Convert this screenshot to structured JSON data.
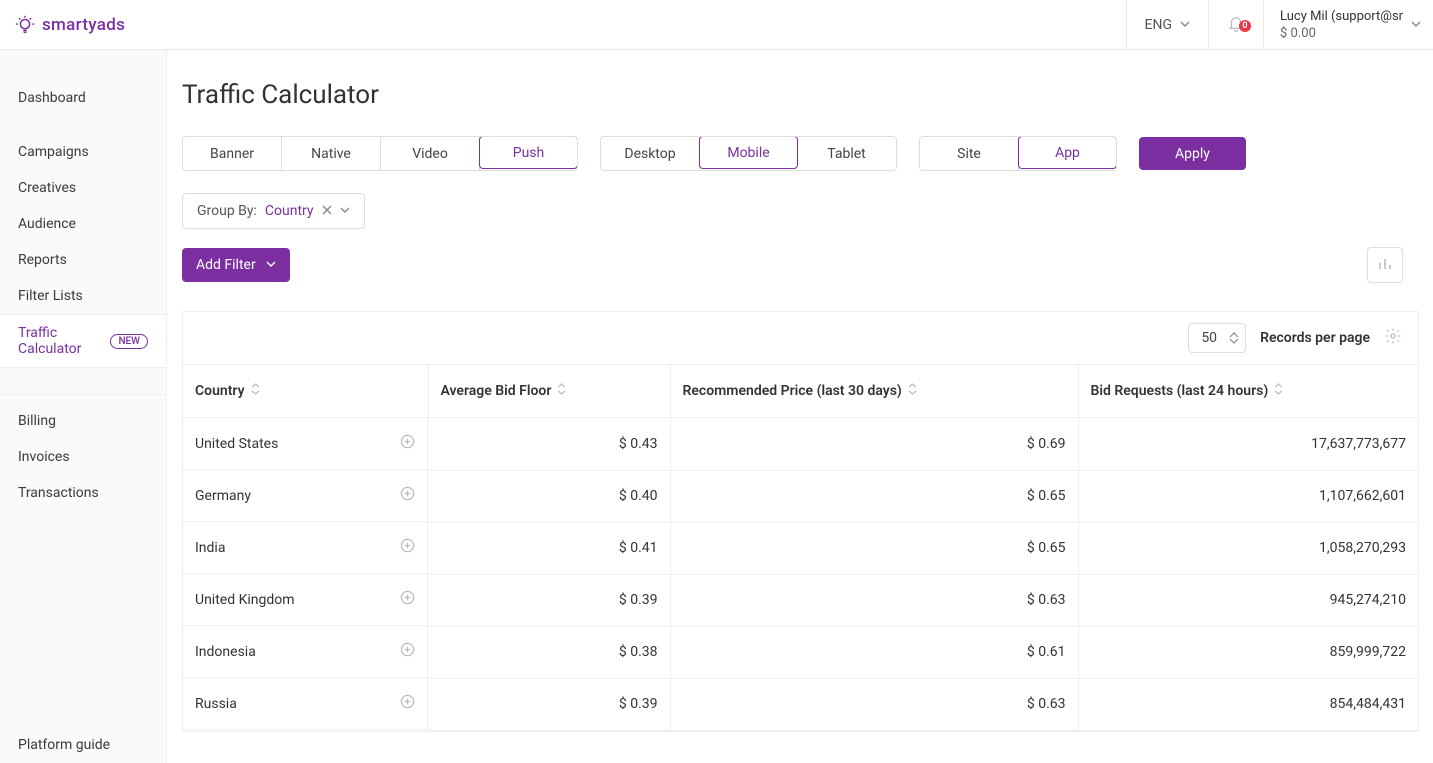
{
  "brand": "smartyads",
  "topbar": {
    "lang": "ENG",
    "notifications_count": "0",
    "user_name": "Lucy Mil (support@sma",
    "balance": "$ 0.00"
  },
  "sidebar": {
    "groups": [
      [
        "Dashboard"
      ],
      [
        "Campaigns",
        "Creatives",
        "Audience",
        "Reports",
        "Filter Lists",
        "Traffic Calculator"
      ],
      [
        "Billing",
        "Invoices",
        "Transactions"
      ]
    ],
    "active": "Traffic Calculator",
    "new_badge": "NEW",
    "footer": "Platform guide"
  },
  "page": {
    "title": "Traffic Calculator"
  },
  "filters": {
    "format": {
      "options": [
        "Banner",
        "Native",
        "Video",
        "Push"
      ],
      "active": "Push"
    },
    "device": {
      "options": [
        "Desktop",
        "Mobile",
        "Tablet"
      ],
      "active": "Mobile"
    },
    "inventory": {
      "options": [
        "Site",
        "App"
      ],
      "active": "App"
    },
    "apply_label": "Apply"
  },
  "groupby": {
    "label": "Group By:",
    "value": "Country"
  },
  "add_filter_label": "Add Filter",
  "table": {
    "records_per_page_value": "50",
    "records_per_page_label": "Records per page",
    "columns": [
      "Country",
      "Average Bid Floor",
      "Recommended Price (last 30 days)",
      "Bid Requests (last 24 hours)"
    ],
    "rows": [
      {
        "country": "United States",
        "bid_floor": "$ 0.43",
        "rec_price": "$ 0.69",
        "requests": "17,637,773,677"
      },
      {
        "country": "Germany",
        "bid_floor": "$ 0.40",
        "rec_price": "$ 0.65",
        "requests": "1,107,662,601"
      },
      {
        "country": "India",
        "bid_floor": "$ 0.41",
        "rec_price": "$ 0.65",
        "requests": "1,058,270,293"
      },
      {
        "country": "United Kingdom",
        "bid_floor": "$ 0.39",
        "rec_price": "$ 0.63",
        "requests": "945,274,210"
      },
      {
        "country": "Indonesia",
        "bid_floor": "$ 0.38",
        "rec_price": "$ 0.61",
        "requests": "859,999,722"
      },
      {
        "country": "Russia",
        "bid_floor": "$ 0.39",
        "rec_price": "$ 0.63",
        "requests": "854,484,431"
      }
    ]
  },
  "colors": {
    "primary": "#7b2fa0"
  }
}
